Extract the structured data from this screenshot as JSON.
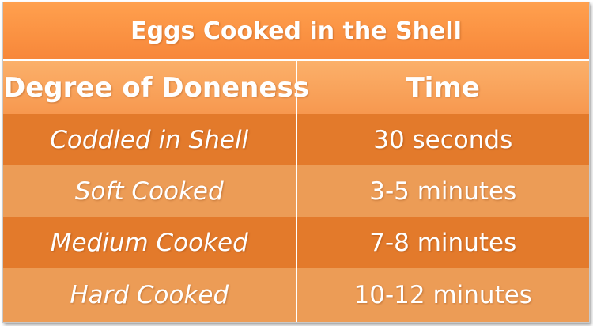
{
  "table": {
    "title": "Eggs Cooked in the Shell",
    "headers": [
      "Degree of Doneness",
      "Time"
    ],
    "rows": [
      {
        "doneness": "Coddled in Shell",
        "time": "30 seconds"
      },
      {
        "doneness": "Soft Cooked",
        "time": "3-5 minutes"
      },
      {
        "doneness": "Medium Cooked",
        "time": "7-8 minutes"
      },
      {
        "doneness": "Hard Cooked",
        "time": "10-12 minutes"
      }
    ]
  },
  "colors": {
    "title_bg": "#f7873a",
    "header_bg": "#f7984f",
    "row_dark": "#e37a2b",
    "row_light": "#ec9c56",
    "text": "#ffffff"
  }
}
